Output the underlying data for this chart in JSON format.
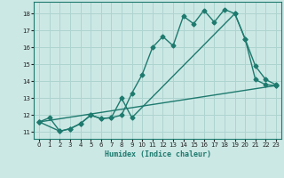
{
  "xlabel": "Humidex (Indice chaleur)",
  "bg_color": "#cce8e5",
  "grid_color": "#aed4d0",
  "line_color": "#1e7a6e",
  "xlim": [
    -0.5,
    23.5
  ],
  "ylim": [
    10.6,
    18.7
  ],
  "yticks": [
    11,
    12,
    13,
    14,
    15,
    16,
    17,
    18
  ],
  "xticks": [
    0,
    1,
    2,
    3,
    4,
    5,
    6,
    7,
    8,
    9,
    10,
    11,
    12,
    13,
    14,
    15,
    16,
    17,
    18,
    19,
    20,
    21,
    22,
    23
  ],
  "line1_x": [
    0,
    1,
    2,
    3,
    4,
    5,
    6,
    7,
    8,
    9,
    10,
    11,
    12,
    13,
    14,
    15,
    16,
    17,
    18,
    19,
    20,
    21,
    22,
    23
  ],
  "line1_y": [
    11.6,
    11.85,
    11.05,
    11.2,
    11.5,
    12.0,
    11.8,
    11.85,
    12.0,
    13.3,
    14.4,
    16.0,
    16.65,
    16.1,
    17.85,
    17.4,
    18.2,
    17.5,
    18.25,
    18.0,
    16.5,
    14.9,
    14.1,
    13.8
  ],
  "line2_x": [
    0,
    2,
    3,
    4,
    5,
    6,
    7,
    8,
    9,
    19,
    20,
    21,
    22,
    23
  ],
  "line2_y": [
    11.6,
    11.05,
    11.2,
    11.5,
    12.0,
    11.8,
    11.85,
    13.0,
    11.85,
    18.0,
    16.5,
    14.1,
    13.8,
    13.75
  ],
  "line3_x": [
    0,
    23
  ],
  "line3_y": [
    11.6,
    13.75
  ],
  "marker_size": 2.5,
  "line_width": 1.0
}
